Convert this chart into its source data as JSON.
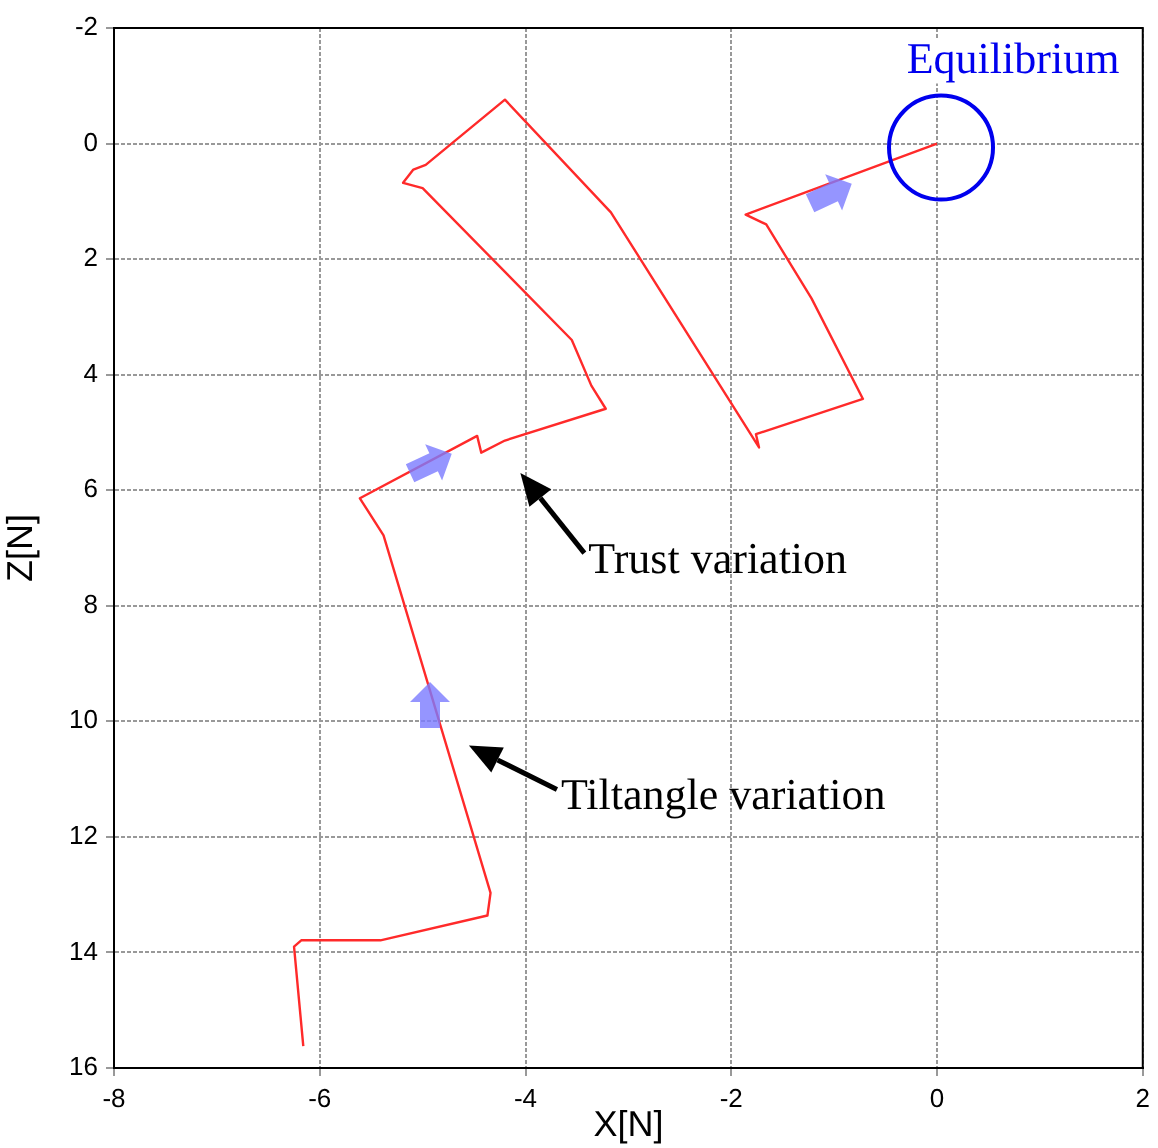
{
  "chart_data": {
    "type": "line",
    "xlabel": "X[N]",
    "ylabel": "Z[N]",
    "x": [
      -6.16,
      -6.25,
      -6.18,
      -5.41,
      -4.37,
      -4.34,
      -5.38,
      -5.61,
      -4.47,
      -4.43,
      -4.2,
      -3.22,
      -3.36,
      -3.55,
      -5.0,
      -5.19,
      -5.09,
      -4.97,
      -4.2,
      -3.17,
      -1.73,
      -1.76,
      -0.72,
      -1.22,
      -1.66,
      -1.86,
      0
    ],
    "series": [
      {
        "color": "#ff2a2a",
        "values": [
          15.62,
          13.9,
          13.79,
          13.79,
          13.36,
          12.97,
          6.78,
          6.14,
          5.06,
          5.35,
          5.14,
          4.59,
          4.19,
          3.4,
          0.77,
          0.68,
          0.45,
          0.37,
          -0.76,
          1.19,
          5.26,
          5.03,
          4.42,
          2.68,
          1.4,
          1.23,
          0
        ]
      }
    ],
    "xlim": [
      -8,
      2
    ],
    "xticks": [
      -8,
      -6,
      -4,
      -2,
      0,
      2
    ],
    "ylim": [
      16,
      -2
    ],
    "yticks": [
      -2,
      0,
      2,
      4,
      6,
      8,
      10,
      12,
      14,
      16
    ],
    "grid": true,
    "legend": false,
    "marker": "none",
    "line_style": "solid",
    "annotations": [
      {
        "text": "Equilibrium",
        "x": 0,
        "y": 0
      },
      "Trust variation",
      "Tiltangle variation"
    ]
  }
}
